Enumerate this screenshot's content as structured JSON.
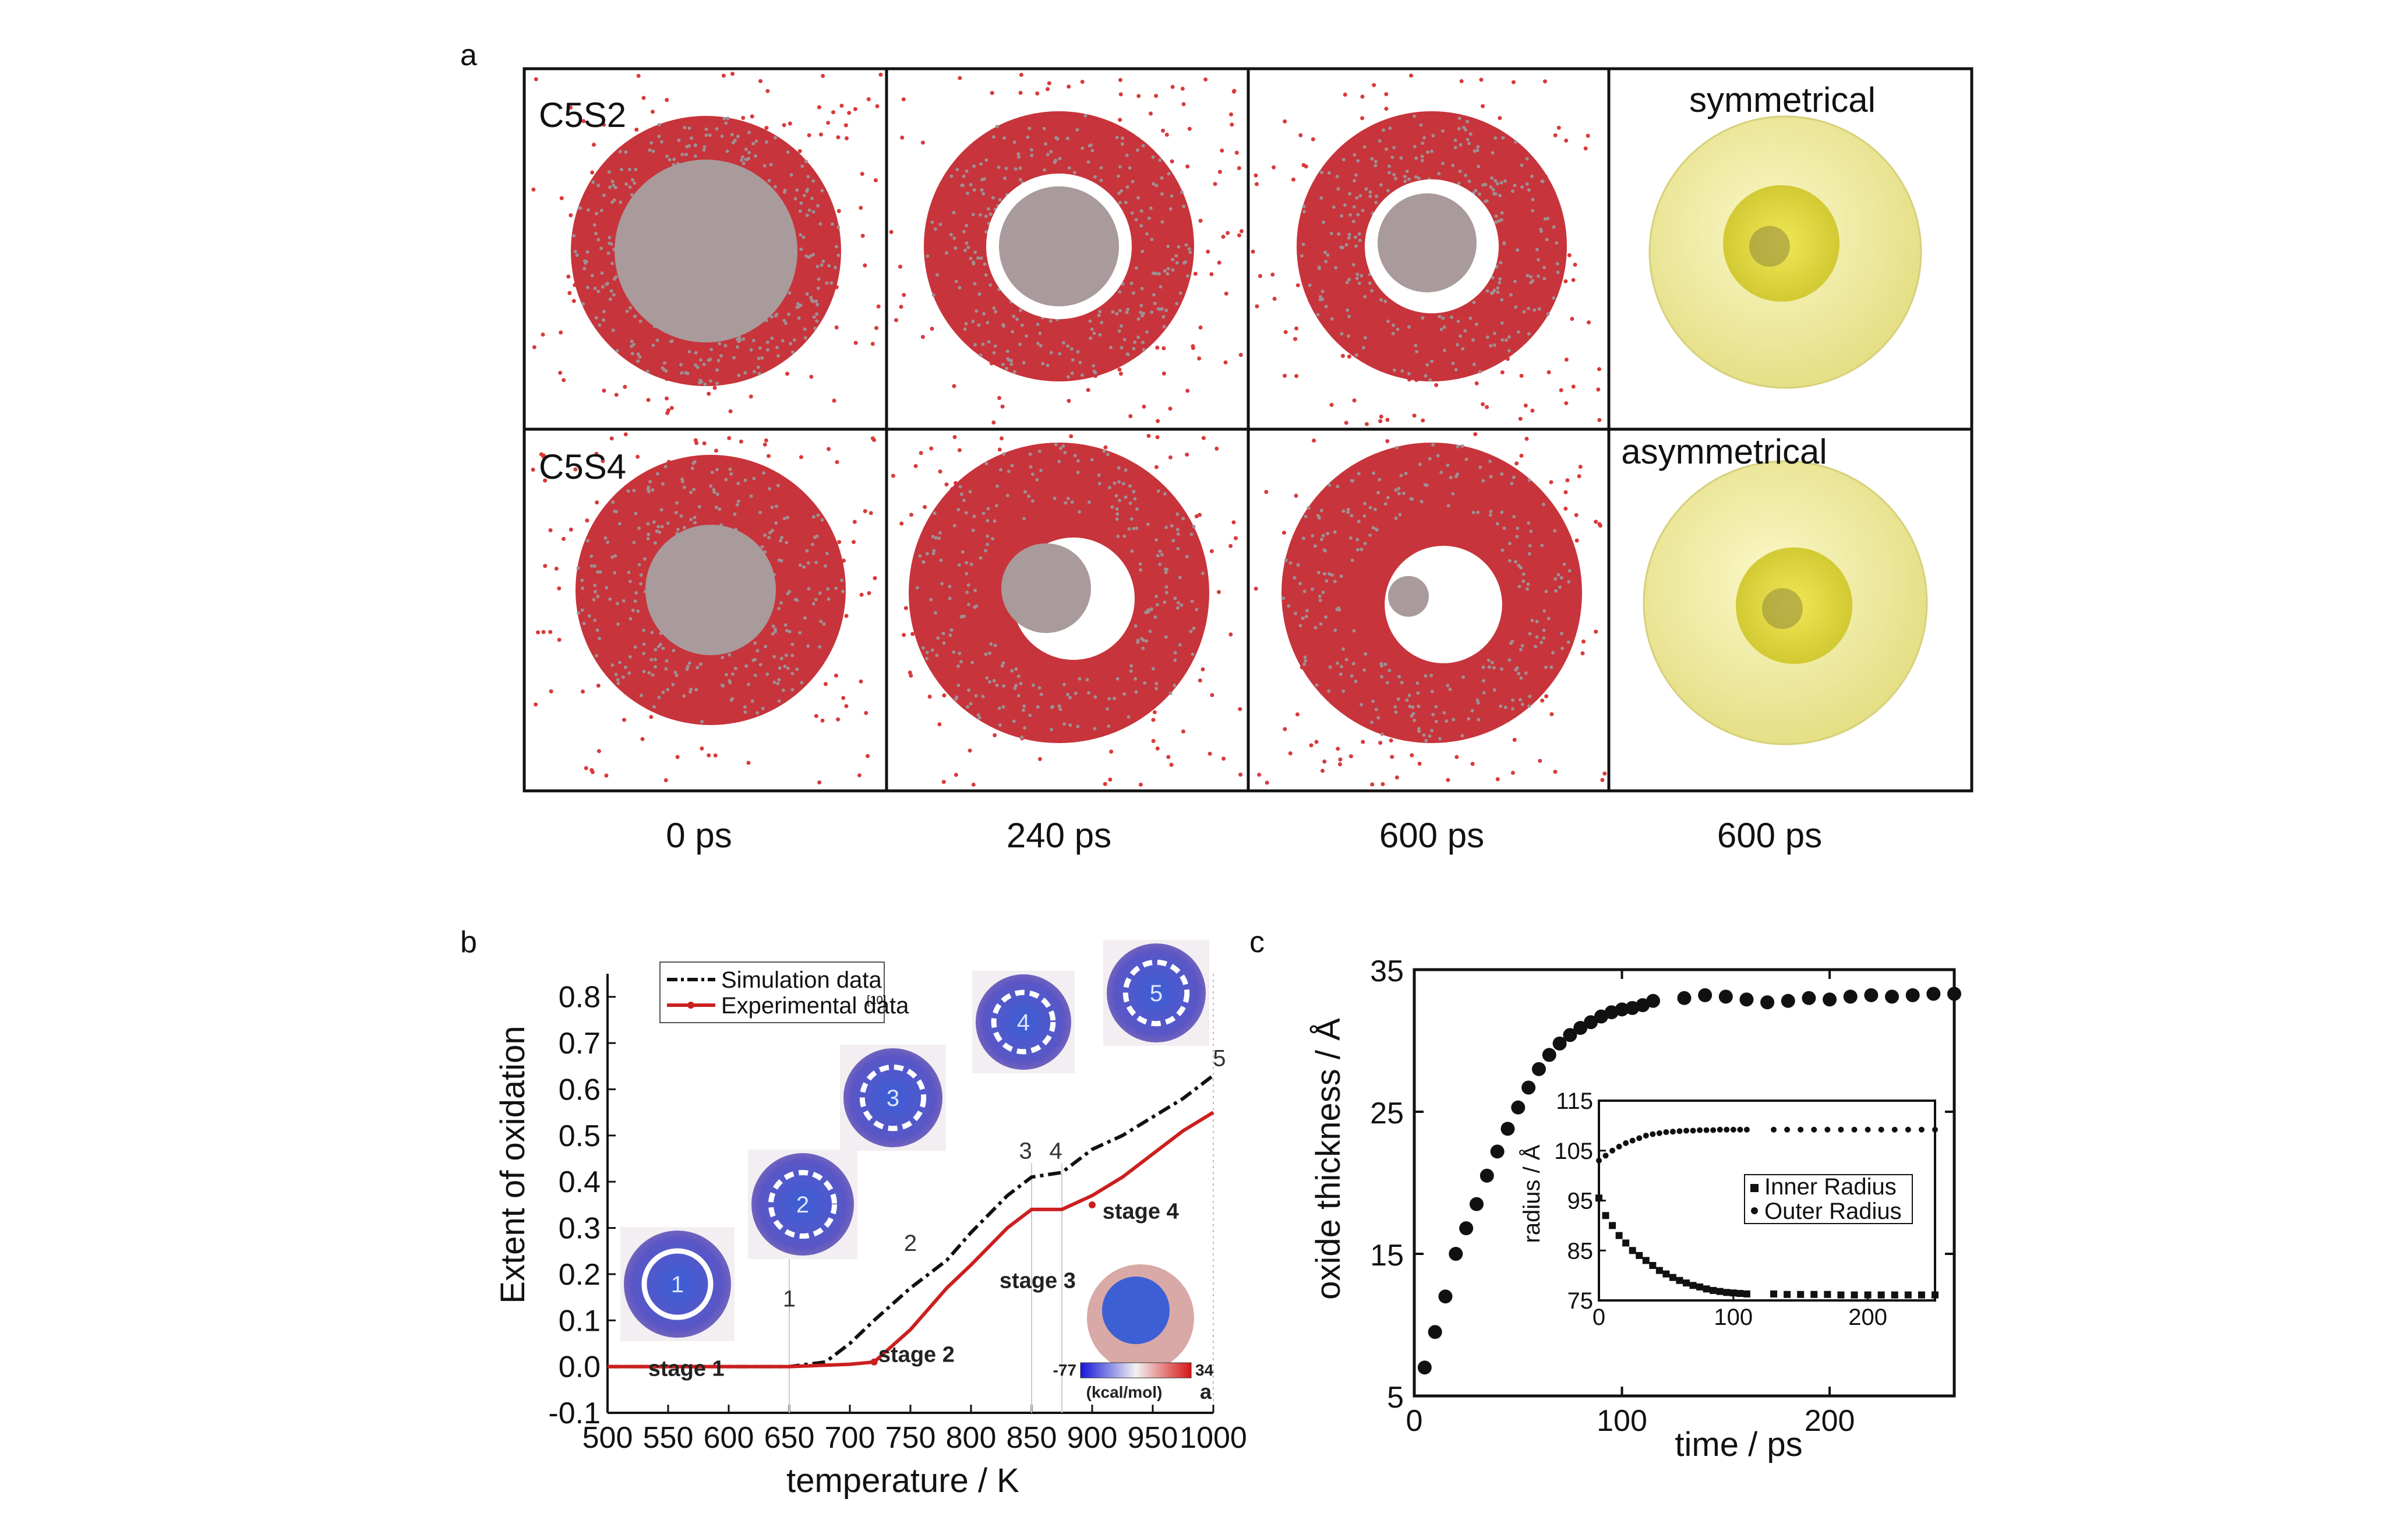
{
  "panel_a": {
    "label": "a",
    "row_labels": [
      "C5S2",
      "C5S4"
    ],
    "col_titles": [
      "symmetrical",
      "asymmetrical"
    ],
    "time_labels": [
      "0 ps",
      "240 ps",
      "600 ps",
      "600 ps"
    ],
    "colors": {
      "oxide": "#c7343b",
      "core": "#a99a9c",
      "void": "#ffffff",
      "shell": "#eeea98",
      "inner": "#d8d23a"
    }
  },
  "panel_b": {
    "label": "b",
    "inset_labels": [
      "1",
      "2",
      "3",
      "4",
      "5"
    ]
  },
  "panel_c": {
    "label": "c"
  },
  "chart_data": [
    {
      "type": "line",
      "xlabel": "temperature / K",
      "ylabel": "Extent of oxidation",
      "xlim": [
        500,
        1000
      ],
      "ylim": [
        -0.1,
        0.85
      ],
      "xticks": [
        500,
        550,
        600,
        650,
        700,
        750,
        800,
        850,
        900,
        950,
        1000
      ],
      "yticks": [
        "-0.1",
        "0.0",
        "0.1",
        "0.2",
        "0.3",
        "0.4",
        "0.5",
        "0.6",
        "0.7",
        "0.8"
      ],
      "legend": {
        "position": "top-left",
        "entries": [
          "Simulation data",
          "Experimental data",
          "[10]"
        ]
      },
      "series": [
        {
          "name": "Simulation data",
          "color": "#111111",
          "style": "dash-dot",
          "x": [
            500,
            600,
            650,
            680,
            700,
            720,
            750,
            780,
            800,
            830,
            850,
            875,
            900,
            925,
            950,
            975,
            1000
          ],
          "y": [
            0,
            0,
            0,
            0.01,
            0.05,
            0.1,
            0.17,
            0.23,
            0.29,
            0.37,
            0.41,
            0.42,
            0.47,
            0.5,
            0.54,
            0.58,
            0.63
          ]
        },
        {
          "name": "Experimental data",
          "color": "#cc1f1f",
          "style": "solid",
          "x": [
            500,
            600,
            650,
            700,
            720,
            750,
            780,
            800,
            830,
            850,
            875,
            900,
            925,
            950,
            975,
            1000
          ],
          "y": [
            0,
            0,
            0,
            0.005,
            0.01,
            0.08,
            0.17,
            0.22,
            0.3,
            0.34,
            0.34,
            0.37,
            0.41,
            0.46,
            0.51,
            0.55
          ]
        }
      ],
      "point_labels": [
        {
          "text": "1",
          "x": 650,
          "y": 0.13
        },
        {
          "text": "2",
          "x": 750,
          "y": 0.25
        },
        {
          "text": "3",
          "x": 845,
          "y": 0.45
        },
        {
          "text": "4",
          "x": 870,
          "y": 0.45
        },
        {
          "text": "5",
          "x": 1005,
          "y": 0.65
        }
      ],
      "annotations": [
        {
          "text": "stage 1",
          "x": 565,
          "y": -0.02
        },
        {
          "text": "stage 2",
          "x": 755,
          "y": 0.01
        },
        {
          "text": "stage 3",
          "x": 855,
          "y": 0.17
        },
        {
          "text": "stage 4",
          "x": 940,
          "y": 0.32
        }
      ],
      "colorbar": {
        "min": "-77",
        "max": "34",
        "unit": "(kcal/mol)",
        "tag": "a"
      }
    },
    {
      "type": "scatter",
      "xlabel": "time / ps",
      "ylabel": "oxide thickness / Å",
      "xlim": [
        0,
        260
      ],
      "ylim": [
        5,
        35
      ],
      "xticks": [
        0,
        100,
        200
      ],
      "yticks": [
        5,
        15,
        25,
        35
      ],
      "series": [
        {
          "name": "oxide thickness",
          "x": [
            5,
            10,
            15,
            20,
            25,
            30,
            35,
            40,
            45,
            50,
            55,
            60,
            65,
            70,
            75,
            80,
            85,
            90,
            95,
            100,
            105,
            110,
            115,
            130,
            140,
            150,
            160,
            170,
            180,
            190,
            200,
            210,
            220,
            230,
            240,
            250,
            260
          ],
          "y": [
            7,
            9.5,
            12,
            15,
            16.8,
            18.5,
            20.5,
            22.2,
            23.8,
            25.3,
            26.7,
            28,
            29,
            29.8,
            30.4,
            30.9,
            31.3,
            31.7,
            32,
            32.2,
            32.3,
            32.5,
            32.8,
            33,
            33.2,
            33.1,
            32.9,
            32.7,
            32.8,
            33,
            32.9,
            33.1,
            33.2,
            33.1,
            33.2,
            33.3,
            33.3
          ]
        }
      ],
      "inset": {
        "type": "scatter",
        "ylabel": "radius / Å",
        "xlim": [
          0,
          250
        ],
        "ylim": [
          75,
          115
        ],
        "xticks": [
          0,
          100,
          200
        ],
        "yticks": [
          75,
          85,
          95,
          105,
          115
        ],
        "legend": {
          "position": "center-right"
        },
        "series": [
          {
            "name": "Inner Radius",
            "marker": "square",
            "x": [
              0,
              5,
              10,
              15,
              20,
              25,
              30,
              35,
              40,
              45,
              50,
              55,
              60,
              65,
              70,
              75,
              80,
              85,
              90,
              95,
              100,
              105,
              110,
              130,
              140,
              150,
              160,
              170,
              180,
              190,
              200,
              210,
              220,
              230,
              240,
              250
            ],
            "y": [
              95.5,
              92,
              90,
              88,
              86.5,
              85,
              84,
              83,
              82,
              81,
              80.3,
              79.6,
              79,
              78.5,
              78,
              77.7,
              77.3,
              77,
              76.8,
              76.6,
              76.5,
              76.4,
              76.3,
              76.3,
              76.2,
              76.2,
              76.2,
              76.2,
              76.1,
              76.1,
              76.1,
              76.1,
              76.1,
              76.1,
              76.1,
              76.1
            ]
          },
          {
            "name": "Outer Radius",
            "marker": "circle",
            "x": [
              0,
              5,
              10,
              15,
              20,
              25,
              30,
              35,
              40,
              45,
              50,
              55,
              60,
              65,
              70,
              75,
              80,
              85,
              90,
              95,
              100,
              105,
              110,
              130,
              140,
              150,
              160,
              170,
              180,
              190,
              200,
              210,
              220,
              230,
              240,
              250
            ],
            "y": [
              103,
              104,
              105,
              105.8,
              106.5,
              107,
              107.5,
              108,
              108.3,
              108.5,
              108.7,
              108.8,
              108.9,
              109,
              109,
              109.1,
              109.1,
              109.1,
              109.2,
              109.2,
              109.2,
              109.2,
              109.2,
              109.2,
              109.2,
              109.2,
              109.2,
              109.2,
              109.2,
              109.2,
              109.2,
              109.2,
              109.2,
              109.2,
              109.2,
              109.2
            ]
          }
        ]
      }
    }
  ]
}
